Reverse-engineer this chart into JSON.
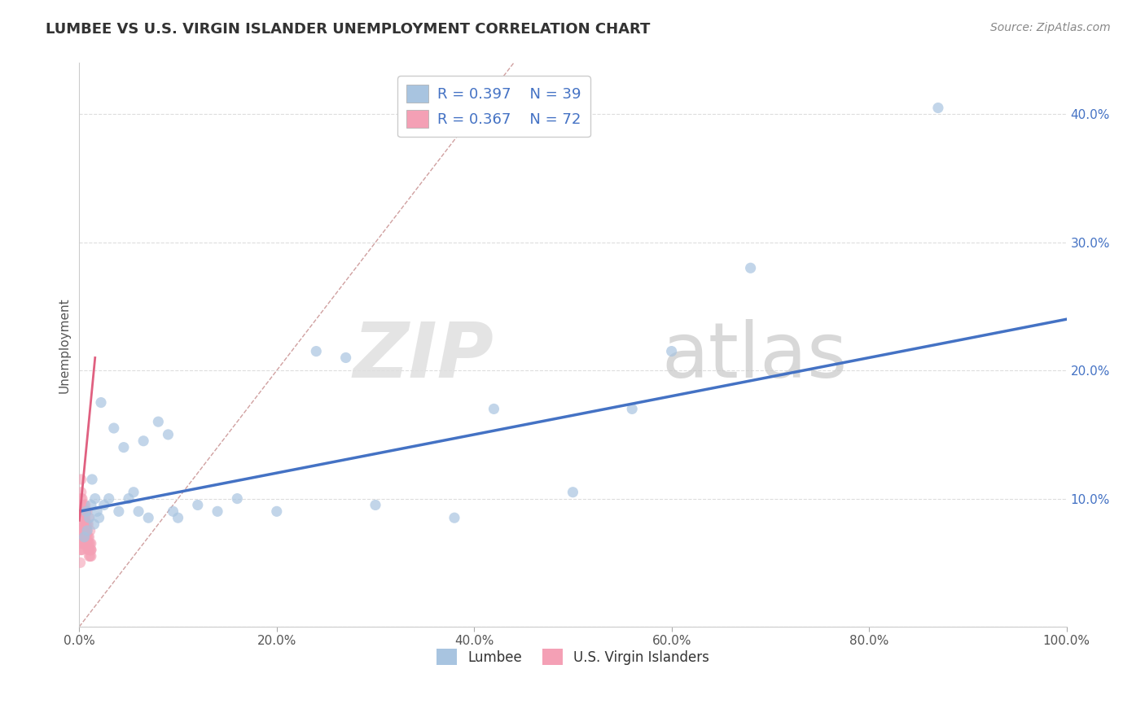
{
  "title": "LUMBEE VS U.S. VIRGIN ISLANDER UNEMPLOYMENT CORRELATION CHART",
  "source": "Source: ZipAtlas.com",
  "ylabel": "Unemployment",
  "xlim": [
    0,
    1.0
  ],
  "ylim": [
    0,
    0.44
  ],
  "xticks": [
    0.0,
    0.2,
    0.4,
    0.6,
    0.8,
    1.0
  ],
  "xticklabels": [
    "0.0%",
    "20.0%",
    "40.0%",
    "60.0%",
    "80.0%",
    "100.0%"
  ],
  "yticks": [
    0.0,
    0.1,
    0.2,
    0.3,
    0.4
  ],
  "yticklabels": [
    "",
    "10.0%",
    "20.0%",
    "30.0%",
    "40.0%"
  ],
  "lumbee_R": "0.397",
  "lumbee_N": "39",
  "virgin_R": "0.367",
  "virgin_N": "72",
  "lumbee_color": "#a8c4e0",
  "virgin_color": "#f4a0b5",
  "lumbee_line_color": "#4472c4",
  "virgin_line_color": "#e06080",
  "diagonal_color": "#d0a0a0",
  "r_n_color": "#4472c4",
  "background_color": "#ffffff",
  "lumbee_scatter_x": [
    0.005,
    0.007,
    0.008,
    0.01,
    0.012,
    0.013,
    0.015,
    0.016,
    0.018,
    0.02,
    0.022,
    0.025,
    0.03,
    0.035,
    0.04,
    0.045,
    0.05,
    0.055,
    0.06,
    0.065,
    0.07,
    0.08,
    0.09,
    0.095,
    0.1,
    0.12,
    0.14,
    0.16,
    0.2,
    0.24,
    0.27,
    0.3,
    0.38,
    0.42,
    0.5,
    0.56,
    0.6,
    0.68,
    0.87
  ],
  "lumbee_scatter_y": [
    0.07,
    0.09,
    0.075,
    0.085,
    0.095,
    0.115,
    0.08,
    0.1,
    0.09,
    0.085,
    0.175,
    0.095,
    0.1,
    0.155,
    0.09,
    0.14,
    0.1,
    0.105,
    0.09,
    0.145,
    0.085,
    0.16,
    0.15,
    0.09,
    0.085,
    0.095,
    0.09,
    0.1,
    0.09,
    0.215,
    0.21,
    0.095,
    0.085,
    0.17,
    0.105,
    0.17,
    0.215,
    0.28,
    0.405
  ],
  "virgin_scatter_x": [
    0.001,
    0.001,
    0.001,
    0.001,
    0.001,
    0.001,
    0.001,
    0.001,
    0.002,
    0.002,
    0.002,
    0.002,
    0.002,
    0.002,
    0.002,
    0.002,
    0.002,
    0.002,
    0.003,
    0.003,
    0.003,
    0.003,
    0.003,
    0.003,
    0.003,
    0.003,
    0.003,
    0.004,
    0.004,
    0.004,
    0.004,
    0.004,
    0.004,
    0.005,
    0.005,
    0.005,
    0.005,
    0.005,
    0.005,
    0.006,
    0.006,
    0.006,
    0.006,
    0.006,
    0.006,
    0.007,
    0.007,
    0.007,
    0.007,
    0.007,
    0.008,
    0.008,
    0.008,
    0.008,
    0.008,
    0.009,
    0.009,
    0.009,
    0.009,
    0.01,
    0.01,
    0.01,
    0.01,
    0.01,
    0.011,
    0.011,
    0.011,
    0.011,
    0.012,
    0.012,
    0.012,
    0.012
  ],
  "virgin_scatter_y": [
    0.05,
    0.06,
    0.065,
    0.07,
    0.075,
    0.08,
    0.08,
    0.09,
    0.06,
    0.07,
    0.075,
    0.08,
    0.085,
    0.09,
    0.095,
    0.1,
    0.105,
    0.115,
    0.06,
    0.065,
    0.07,
    0.075,
    0.08,
    0.085,
    0.09,
    0.095,
    0.1,
    0.065,
    0.07,
    0.075,
    0.08,
    0.085,
    0.09,
    0.065,
    0.07,
    0.075,
    0.08,
    0.085,
    0.095,
    0.065,
    0.07,
    0.075,
    0.08,
    0.085,
    0.095,
    0.065,
    0.07,
    0.075,
    0.08,
    0.09,
    0.065,
    0.07,
    0.075,
    0.08,
    0.09,
    0.06,
    0.065,
    0.07,
    0.08,
    0.055,
    0.06,
    0.065,
    0.07,
    0.085,
    0.055,
    0.06,
    0.065,
    0.075,
    0.055,
    0.06,
    0.065,
    0.06
  ],
  "lumbee_line_x": [
    0.0,
    1.0
  ],
  "lumbee_line_y": [
    0.09,
    0.24
  ],
  "virgin_line_x": [
    0.0,
    0.016
  ],
  "virgin_line_y": [
    0.083,
    0.21
  ],
  "diagonal_line_x": [
    0.0,
    0.44
  ],
  "diagonal_line_y": [
    0.0,
    0.44
  ]
}
